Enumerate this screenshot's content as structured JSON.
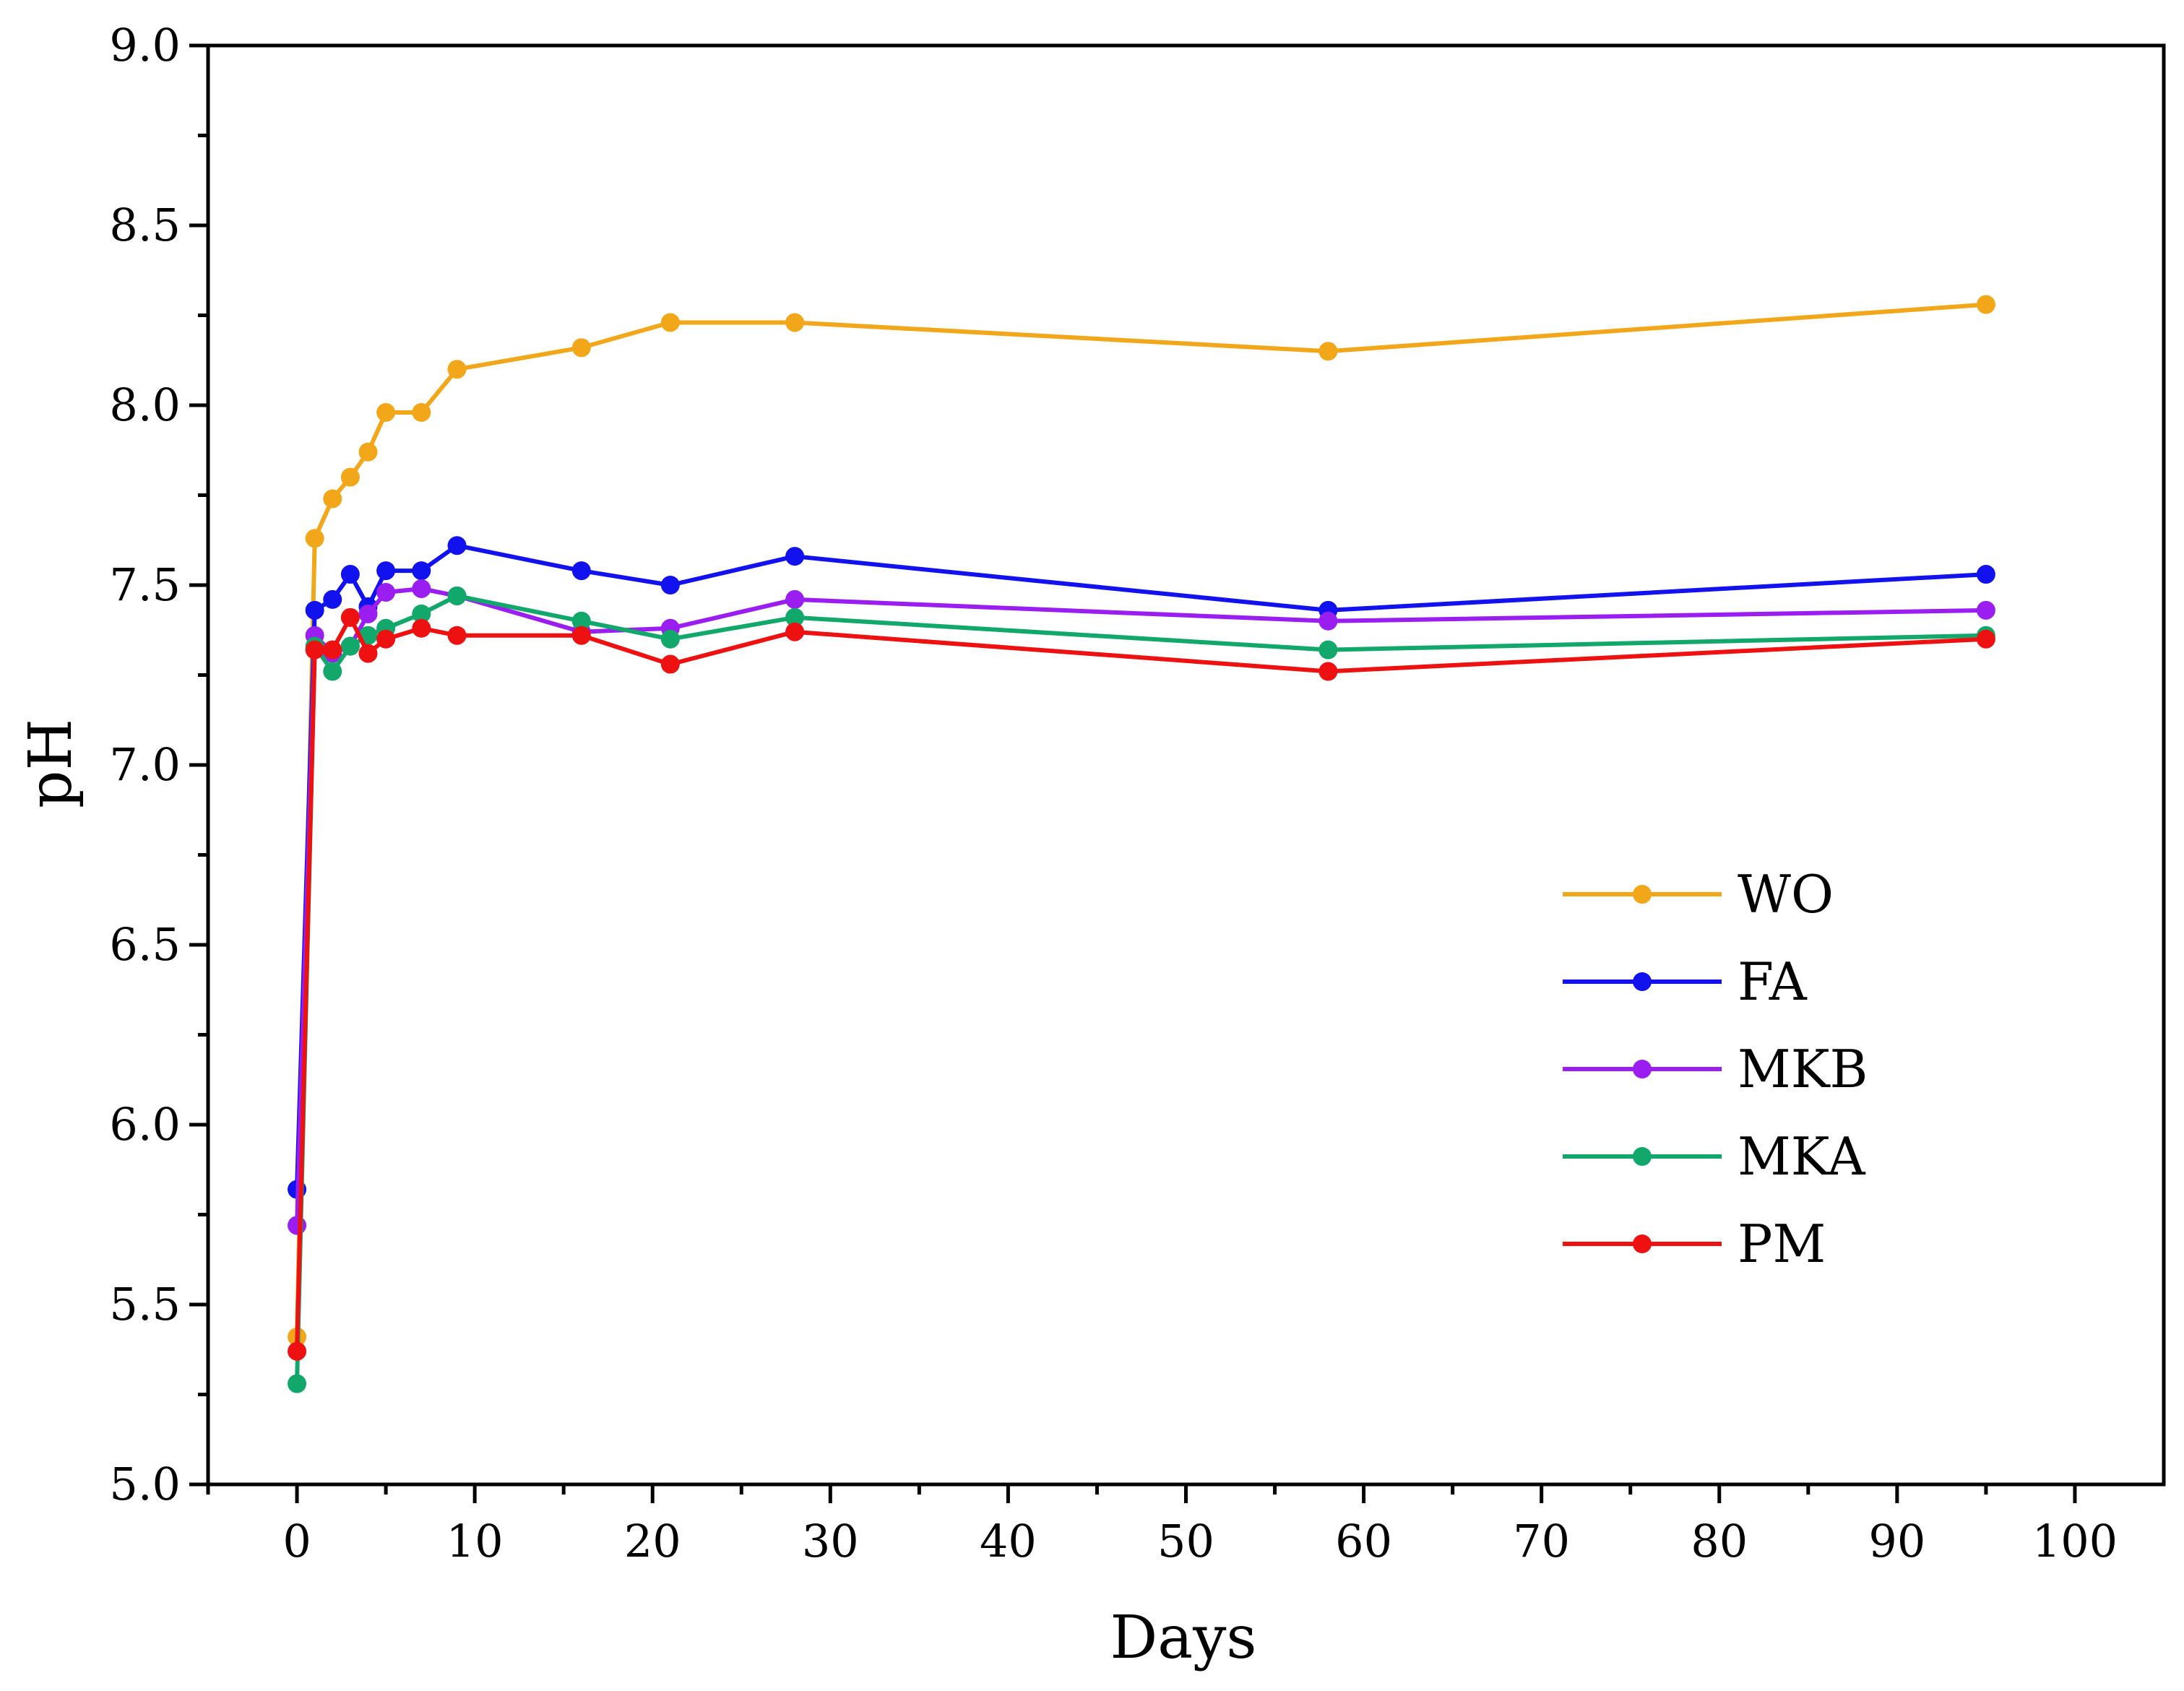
{
  "chart_data": {
    "type": "line",
    "title": "",
    "xlabel": "Days",
    "ylabel": "pH",
    "xlim": [
      -5,
      105
    ],
    "ylim": [
      5.0,
      9.0
    ],
    "xticks": [
      0,
      10,
      20,
      30,
      40,
      50,
      60,
      70,
      80,
      90,
      100
    ],
    "xtick_labels": [
      "0",
      "10",
      "20",
      "30",
      "40",
      "50",
      "60",
      "70",
      "80",
      "90",
      "100"
    ],
    "yticks": [
      5.0,
      5.5,
      6.0,
      6.5,
      7.0,
      7.5,
      8.0,
      8.5,
      9.0
    ],
    "ytick_labels": [
      "5.0",
      "5.5",
      "6.0",
      "6.5",
      "7.0",
      "7.5",
      "8.0",
      "8.5",
      "9.0"
    ],
    "grid": false,
    "legend_position": "right",
    "x": [
      0,
      1,
      2,
      3,
      4,
      5,
      7,
      9,
      16,
      21,
      28,
      58,
      95
    ],
    "series": [
      {
        "name": "WO",
        "color": "#f2a71b",
        "values": [
          5.41,
          7.63,
          7.74,
          7.8,
          7.87,
          7.98,
          7.98,
          8.1,
          8.16,
          8.23,
          8.23,
          8.15,
          8.28
        ]
      },
      {
        "name": "FA",
        "color": "#1212ee",
        "values": [
          5.82,
          7.43,
          7.46,
          7.53,
          7.44,
          7.54,
          7.54,
          7.61,
          7.54,
          7.5,
          7.58,
          7.43,
          7.53
        ]
      },
      {
        "name": "MKB",
        "color": "#9a1ef0",
        "values": [
          5.72,
          7.36,
          7.31,
          7.33,
          7.42,
          7.48,
          7.49,
          7.47,
          7.37,
          7.38,
          7.46,
          7.4,
          7.43
        ]
      },
      {
        "name": "MKA",
        "color": "#13a86b",
        "values": [
          5.28,
          7.33,
          7.26,
          7.33,
          7.36,
          7.38,
          7.42,
          7.47,
          7.4,
          7.35,
          7.41,
          7.32,
          7.36
        ]
      },
      {
        "name": "PM",
        "color": "#ee1111",
        "values": [
          5.37,
          7.32,
          7.32,
          7.41,
          7.31,
          7.35,
          7.38,
          7.36,
          7.36,
          7.28,
          7.37,
          7.26,
          7.35
        ]
      }
    ]
  }
}
